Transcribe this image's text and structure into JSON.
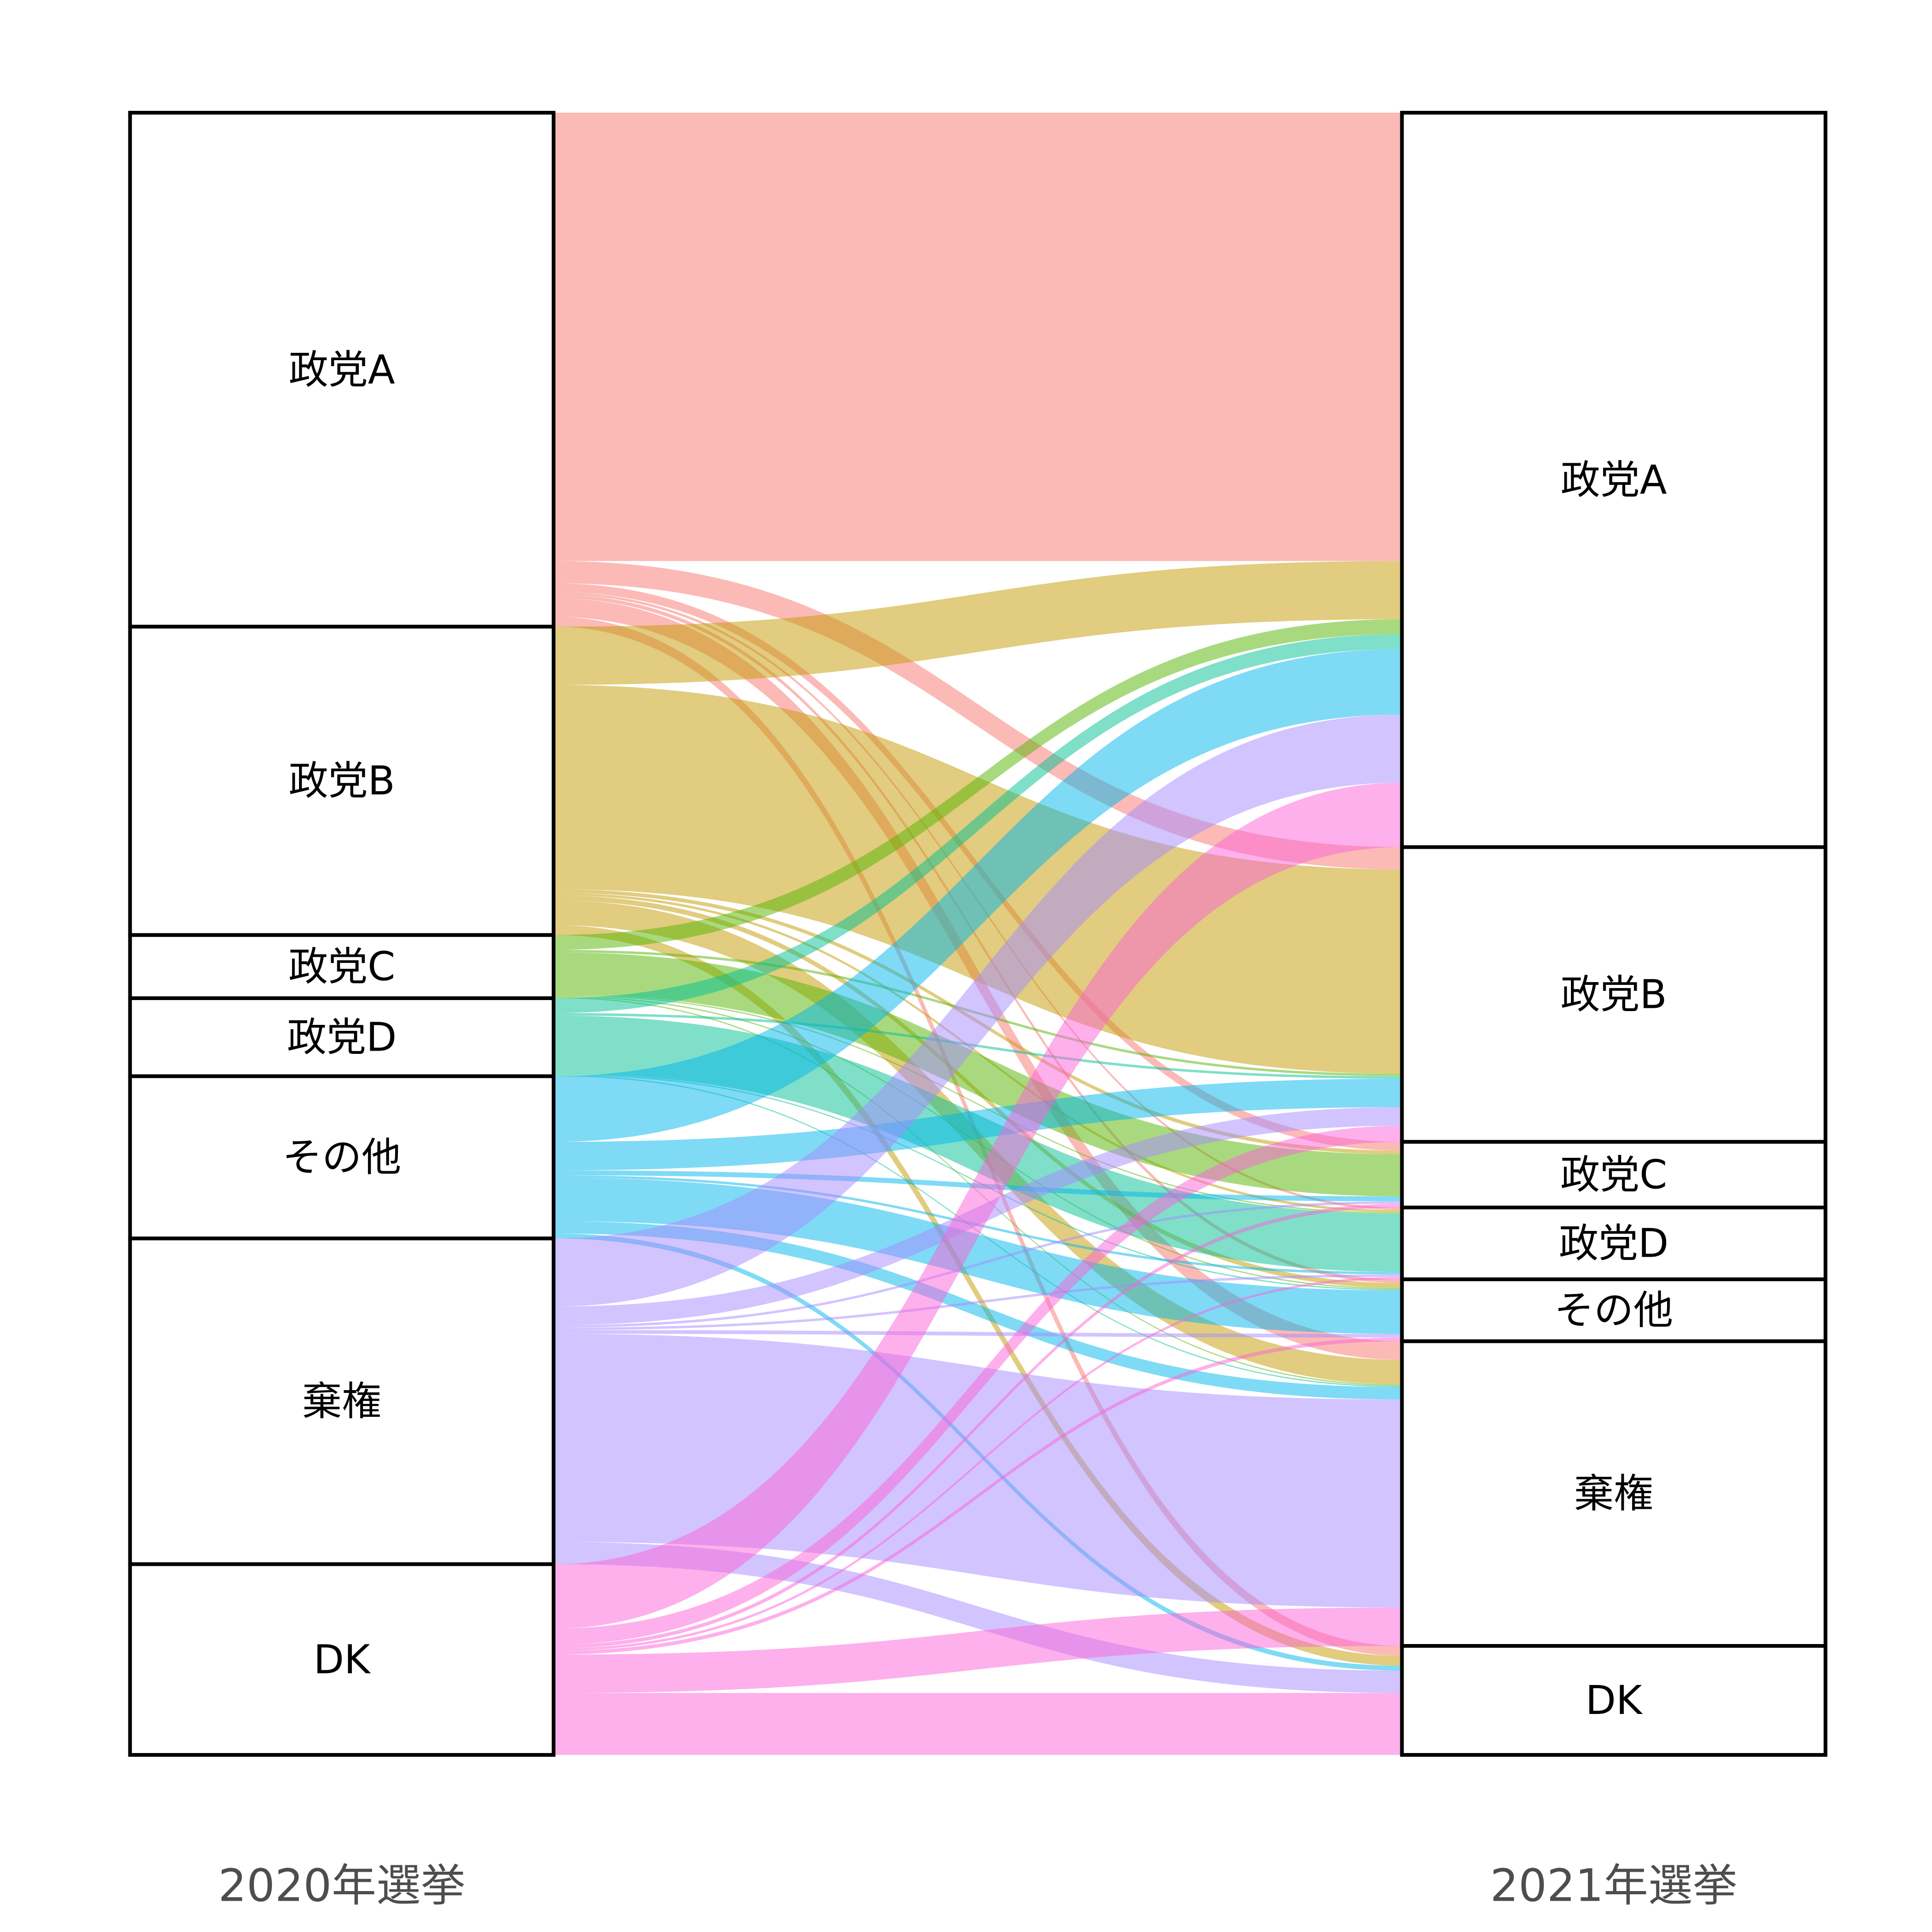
{
  "chart_data": {
    "type": "alluvial",
    "axes": [
      "2020年選挙",
      "2021年選挙"
    ],
    "nodes": [
      "政党A",
      "政党B",
      "政党C",
      "政党D",
      "その他",
      "棄権",
      "DK"
    ],
    "colors": [
      "#F8766D",
      "#C49A00",
      "#53B400",
      "#00C094",
      "#00B6EB",
      "#A58AFF",
      "#FB61D7"
    ],
    "alpha": 0.5,
    "flows_note": "matrix[from 2020][to 2021], approximate relative counts",
    "matrix": [
      [
        362,
        18,
        7,
        2,
        3,
        15,
        8
      ],
      [
        47,
        165,
        3,
        2,
        4,
        20,
        8
      ],
      [
        12,
        2,
        34,
        1,
        1,
        1,
        0
      ],
      [
        12,
        2,
        0,
        47,
        1,
        1,
        0
      ],
      [
        53,
        23,
        4,
        2,
        35,
        10,
        4
      ],
      [
        55,
        15,
        2,
        2,
        3,
        168,
        18
      ],
      [
        52,
        13,
        3,
        2,
        3,
        31,
        50
      ]
    ]
  }
}
